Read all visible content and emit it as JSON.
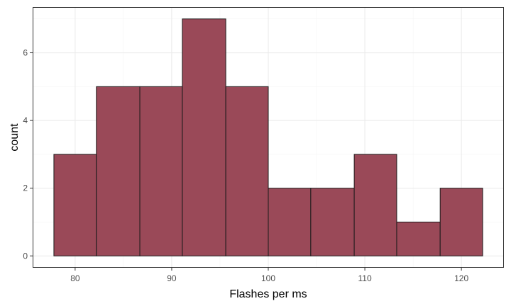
{
  "chart_data": {
    "type": "histogram",
    "xlabel": "Flashes per ms",
    "ylabel": "count",
    "xlim": [
      75.6,
      124.4
    ],
    "ylim": [
      -0.35,
      7.35
    ],
    "grid": true,
    "bins": [
      {
        "x_start": 77.8,
        "x_end": 82.2,
        "count": 3
      },
      {
        "x_start": 82.2,
        "x_end": 86.7,
        "count": 5
      },
      {
        "x_start": 86.7,
        "x_end": 91.1,
        "count": 5
      },
      {
        "x_start": 91.1,
        "x_end": 95.6,
        "count": 7
      },
      {
        "x_start": 95.6,
        "x_end": 100.0,
        "count": 5
      },
      {
        "x_start": 100.0,
        "x_end": 104.4,
        "count": 2
      },
      {
        "x_start": 104.4,
        "x_end": 108.9,
        "count": 2
      },
      {
        "x_start": 108.9,
        "x_end": 113.3,
        "count": 3
      },
      {
        "x_start": 113.3,
        "x_end": 117.8,
        "count": 1
      },
      {
        "x_start": 117.8,
        "x_end": 122.2,
        "count": 2
      }
    ],
    "x_ticks": [
      80,
      90,
      100,
      110,
      120
    ],
    "x_tick_labels": [
      "80",
      "90",
      "100",
      "110",
      "120"
    ],
    "y_ticks": [
      0,
      2,
      4,
      6
    ],
    "y_tick_labels": [
      "0",
      "2",
      "4",
      "6"
    ],
    "bar_fill": "#9a4958",
    "bar_stroke": "#1a1a1a",
    "panel_border": "#333333",
    "grid_major": "#ebebeb",
    "grid_minor": "#f4f4f4"
  }
}
